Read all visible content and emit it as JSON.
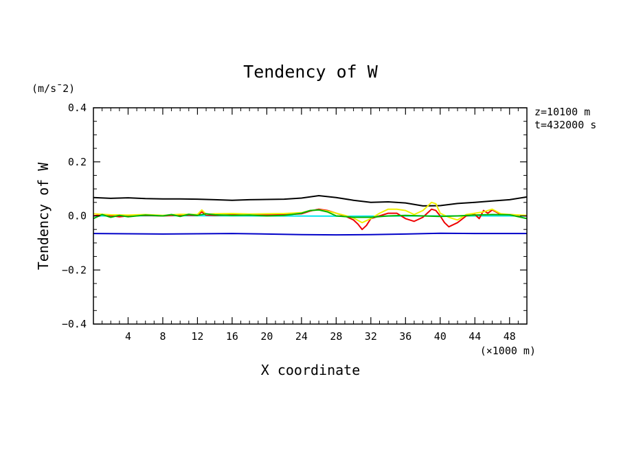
{
  "chart_data": {
    "type": "line",
    "title": "Tendency of W",
    "xlabel": "X coordinate",
    "ylabel": "Tendency of W",
    "x_unit": "(×1000 m)",
    "y_unit": "(m/s¯2)",
    "annotations": [
      "z=10100 m",
      "t=432000 s"
    ],
    "xlim": [
      0,
      50
    ],
    "ylim": [
      -0.4,
      0.4
    ],
    "x_ticks": [
      4,
      8,
      12,
      16,
      20,
      24,
      28,
      32,
      36,
      40,
      44,
      48
    ],
    "y_ticks": [
      0.4,
      0.2,
      0.0,
      -0.2,
      -0.4
    ],
    "y_tick_labels": [
      "0.4",
      "0.2",
      "0.0",
      "−0.2",
      "−0.4"
    ],
    "grid": false,
    "series": [
      {
        "name": "black",
        "color": "#000000",
        "points": [
          [
            0,
            0.068
          ],
          [
            2,
            0.065
          ],
          [
            4,
            0.067
          ],
          [
            6,
            0.064
          ],
          [
            8,
            0.063
          ],
          [
            10,
            0.063
          ],
          [
            12,
            0.062
          ],
          [
            14,
            0.06
          ],
          [
            16,
            0.058
          ],
          [
            18,
            0.06
          ],
          [
            20,
            0.061
          ],
          [
            22,
            0.062
          ],
          [
            24,
            0.066
          ],
          [
            26,
            0.075
          ],
          [
            28,
            0.068
          ],
          [
            30,
            0.058
          ],
          [
            32,
            0.05
          ],
          [
            34,
            0.052
          ],
          [
            36,
            0.048
          ],
          [
            38,
            0.037
          ],
          [
            40,
            0.038
          ],
          [
            42,
            0.046
          ],
          [
            44,
            0.05
          ],
          [
            46,
            0.055
          ],
          [
            48,
            0.06
          ],
          [
            50,
            0.07
          ]
        ]
      },
      {
        "name": "blue",
        "color": "#0000c8",
        "points": [
          [
            0,
            -0.065
          ],
          [
            4,
            -0.066
          ],
          [
            8,
            -0.067
          ],
          [
            12,
            -0.066
          ],
          [
            16,
            -0.065
          ],
          [
            20,
            -0.067
          ],
          [
            24,
            -0.069
          ],
          [
            28,
            -0.07
          ],
          [
            32,
            -0.069
          ],
          [
            36,
            -0.067
          ],
          [
            40,
            -0.064
          ],
          [
            44,
            -0.065
          ],
          [
            48,
            -0.065
          ],
          [
            50,
            -0.065
          ]
        ]
      },
      {
        "name": "cyan",
        "color": "#00e5ee",
        "points": [
          [
            0,
            0.0
          ],
          [
            10,
            0.001
          ],
          [
            20,
            0.0
          ],
          [
            30,
            -0.001
          ],
          [
            40,
            0.0
          ],
          [
            50,
            0.0
          ]
        ]
      },
      {
        "name": "red",
        "color": "#ee0000",
        "points": [
          [
            0,
            0.0
          ],
          [
            1,
            0.005
          ],
          [
            2,
            0.001
          ],
          [
            3,
            -0.003
          ],
          [
            4,
            0.0
          ],
          [
            6,
            0.002
          ],
          [
            8,
            0.0
          ],
          [
            10,
            0.003
          ],
          [
            12,
            0.002
          ],
          [
            12.5,
            0.015
          ],
          [
            13,
            0.003
          ],
          [
            14,
            0.002
          ],
          [
            16,
            0.004
          ],
          [
            18,
            0.003
          ],
          [
            20,
            0.003
          ],
          [
            22,
            0.004
          ],
          [
            24,
            0.008
          ],
          [
            25,
            0.018
          ],
          [
            26,
            0.025
          ],
          [
            27,
            0.02
          ],
          [
            28,
            0.01
          ],
          [
            29,
            0.0
          ],
          [
            30,
            -0.015
          ],
          [
            30.5,
            -0.03
          ],
          [
            31,
            -0.05
          ],
          [
            31.5,
            -0.035
          ],
          [
            32,
            -0.01
          ],
          [
            33,
            0.0
          ],
          [
            34,
            0.01
          ],
          [
            35,
            0.01
          ],
          [
            36,
            -0.01
          ],
          [
            37,
            -0.02
          ],
          [
            38,
            -0.005
          ],
          [
            38.5,
            0.01
          ],
          [
            39,
            0.025
          ],
          [
            39.5,
            0.02
          ],
          [
            40,
            0.0
          ],
          [
            40.5,
            -0.025
          ],
          [
            41,
            -0.04
          ],
          [
            42,
            -0.025
          ],
          [
            43,
            0.0
          ],
          [
            44,
            0.005
          ],
          [
            44.5,
            -0.01
          ],
          [
            45,
            0.02
          ],
          [
            45.5,
            0.01
          ],
          [
            46,
            0.022
          ],
          [
            47,
            0.005
          ],
          [
            48,
            0.005
          ],
          [
            50,
            0.0
          ]
        ]
      },
      {
        "name": "yellow",
        "color": "#f0f000",
        "points": [
          [
            0,
            0.008
          ],
          [
            2,
            0.004
          ],
          [
            4,
            0.003
          ],
          [
            6,
            0.005
          ],
          [
            8,
            0.002
          ],
          [
            10,
            0.006
          ],
          [
            12,
            0.005
          ],
          [
            12.5,
            0.022
          ],
          [
            13,
            0.006
          ],
          [
            14,
            0.008
          ],
          [
            16,
            0.009
          ],
          [
            18,
            0.007
          ],
          [
            20,
            0.008
          ],
          [
            22,
            0.009
          ],
          [
            24,
            0.012
          ],
          [
            25,
            0.02
          ],
          [
            26,
            0.022
          ],
          [
            27,
            0.018
          ],
          [
            28,
            0.01
          ],
          [
            29,
            0.002
          ],
          [
            30,
            -0.008
          ],
          [
            31,
            -0.025
          ],
          [
            32,
            -0.01
          ],
          [
            33,
            0.01
          ],
          [
            34,
            0.025
          ],
          [
            35,
            0.025
          ],
          [
            36,
            0.02
          ],
          [
            37,
            0.005
          ],
          [
            38,
            0.02
          ],
          [
            39,
            0.05
          ],
          [
            39.5,
            0.045
          ],
          [
            40,
            0.01
          ],
          [
            41,
            -0.005
          ],
          [
            42,
            -0.015
          ],
          [
            43,
            0.005
          ],
          [
            44,
            0.01
          ],
          [
            45,
            0.015
          ],
          [
            46,
            0.025
          ],
          [
            47,
            0.008
          ],
          [
            48,
            0.005
          ],
          [
            50,
            0.002
          ]
        ]
      },
      {
        "name": "green",
        "color": "#00b400",
        "points": [
          [
            0,
            -0.01
          ],
          [
            1,
            0.005
          ],
          [
            2,
            -0.005
          ],
          [
            3,
            0.002
          ],
          [
            4,
            -0.003
          ],
          [
            6,
            0.003
          ],
          [
            8,
            0.0
          ],
          [
            9,
            0.005
          ],
          [
            10,
            -0.002
          ],
          [
            11,
            0.006
          ],
          [
            12,
            0.002
          ],
          [
            13,
            0.008
          ],
          [
            14,
            0.004
          ],
          [
            16,
            0.002
          ],
          [
            18,
            0.003
          ],
          [
            20,
            0.0
          ],
          [
            22,
            0.002
          ],
          [
            24,
            0.01
          ],
          [
            25,
            0.02
          ],
          [
            26,
            0.022
          ],
          [
            27,
            0.015
          ],
          [
            28,
            0.0
          ],
          [
            30,
            -0.005
          ],
          [
            32,
            -0.005
          ],
          [
            34,
            0.0
          ],
          [
            36,
            0.002
          ],
          [
            38,
            0.0
          ],
          [
            40,
            -0.002
          ],
          [
            42,
            0.0
          ],
          [
            44,
            0.003
          ],
          [
            46,
            0.005
          ],
          [
            48,
            0.004
          ],
          [
            50,
            -0.01
          ]
        ]
      }
    ]
  }
}
